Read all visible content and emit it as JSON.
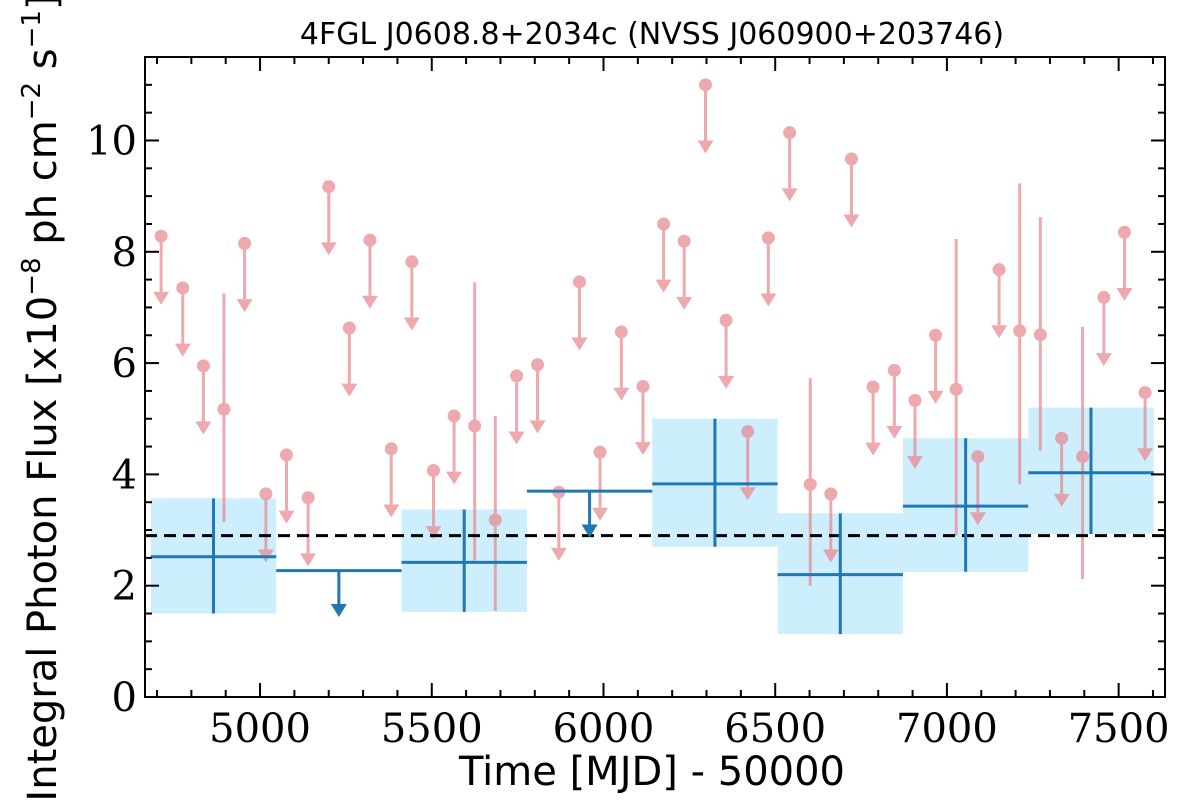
{
  "chart_data": {
    "type": "scatter",
    "title": "4FGL J0608.8+2034c (NVSS J060900+203746)",
    "xlabel": "Time [MJD] - 50000",
    "ylabel": "Integral Photon Flux [x10",
    "ylabel_exp1": "−8",
    "ylabel_mid": " ph cm",
    "ylabel_exp2": "−2",
    "ylabel_end": " s",
    "ylabel_exp3": "−1",
    "ylabel_close": "]",
    "xlim": [
      4665,
      7635
    ],
    "ylim": [
      0,
      11.5
    ],
    "x_ticks": [
      5000,
      5500,
      6000,
      6500,
      7000,
      7500
    ],
    "x_tick_labels": [
      "5000",
      "5500",
      "6000",
      "6500",
      "7000",
      "7500"
    ],
    "y_ticks": [
      0,
      2,
      4,
      6,
      8,
      10
    ],
    "y_tick_labels": [
      "0",
      "2",
      "4",
      "6",
      "8",
      "10"
    ],
    "mean_flux": 2.9,
    "colors": {
      "yearly": "#1f77b4",
      "yearly_band": "#cdeefc",
      "monthly": "#e8858c",
      "mean_line": "#000000"
    },
    "yearly_bins": [
      {
        "x_start": 4682,
        "x_end": 5047,
        "y": 2.52,
        "y_low": 1.5,
        "y_high": 3.57,
        "upper_limit": false
      },
      {
        "x_start": 5047,
        "x_end": 5412,
        "y": 2.27,
        "upper_limit": true
      },
      {
        "x_start": 5412,
        "x_end": 5777,
        "y": 2.42,
        "y_low": 1.53,
        "y_high": 3.37,
        "upper_limit": false
      },
      {
        "x_start": 5777,
        "x_end": 6142,
        "y": 3.7,
        "upper_limit": true
      },
      {
        "x_start": 6142,
        "x_end": 6507,
        "y": 3.83,
        "y_low": 2.7,
        "y_high": 5.0,
        "upper_limit": false
      },
      {
        "x_start": 6507,
        "x_end": 6872,
        "y": 2.2,
        "y_low": 1.13,
        "y_high": 3.3,
        "upper_limit": false
      },
      {
        "x_start": 6872,
        "x_end": 7237,
        "y": 3.43,
        "y_low": 2.25,
        "y_high": 4.65,
        "upper_limit": false
      },
      {
        "x_start": 7237,
        "x_end": 7602,
        "y": 4.03,
        "y_low": 2.93,
        "y_high": 5.2,
        "upper_limit": false
      }
    ],
    "monthly_points": [
      {
        "x": 4712,
        "y": 8.28,
        "upper_limit": true
      },
      {
        "x": 4775,
        "y": 7.35,
        "upper_limit": true
      },
      {
        "x": 4835,
        "y": 5.95,
        "upper_limit": true
      },
      {
        "x": 4895,
        "y": 5.17,
        "upper_limit": false,
        "y_low": 3.15,
        "y_high": 7.25
      },
      {
        "x": 4955,
        "y": 8.15,
        "upper_limit": true
      },
      {
        "x": 5017,
        "y": 3.65,
        "upper_limit": true
      },
      {
        "x": 5077,
        "y": 4.35,
        "upper_limit": true
      },
      {
        "x": 5140,
        "y": 3.58,
        "upper_limit": true
      },
      {
        "x": 5200,
        "y": 9.17,
        "upper_limit": true
      },
      {
        "x": 5260,
        "y": 6.63,
        "upper_limit": true
      },
      {
        "x": 5320,
        "y": 8.21,
        "upper_limit": true
      },
      {
        "x": 5382,
        "y": 4.46,
        "upper_limit": true
      },
      {
        "x": 5442,
        "y": 7.82,
        "upper_limit": true
      },
      {
        "x": 5505,
        "y": 4.07,
        "upper_limit": true
      },
      {
        "x": 5565,
        "y": 5.05,
        "upper_limit": true
      },
      {
        "x": 5625,
        "y": 4.87,
        "upper_limit": false,
        "y_low": 2.45,
        "y_high": 7.45
      },
      {
        "x": 5685,
        "y": 3.18,
        "upper_limit": false,
        "y_low": 1.55,
        "y_high": 5.05
      },
      {
        "x": 5747,
        "y": 5.77,
        "upper_limit": true
      },
      {
        "x": 5808,
        "y": 5.97,
        "upper_limit": true
      },
      {
        "x": 5870,
        "y": 3.68,
        "upper_limit": true
      },
      {
        "x": 5930,
        "y": 7.46,
        "upper_limit": true
      },
      {
        "x": 5990,
        "y": 4.4,
        "upper_limit": true
      },
      {
        "x": 6052,
        "y": 6.56,
        "upper_limit": true
      },
      {
        "x": 6115,
        "y": 5.58,
        "upper_limit": true
      },
      {
        "x": 6175,
        "y": 8.5,
        "upper_limit": true
      },
      {
        "x": 6235,
        "y": 8.19,
        "upper_limit": true
      },
      {
        "x": 6297,
        "y": 11.0,
        "upper_limit": true
      },
      {
        "x": 6357,
        "y": 6.77,
        "upper_limit": true
      },
      {
        "x": 6420,
        "y": 4.77,
        "upper_limit": true
      },
      {
        "x": 6480,
        "y": 8.25,
        "upper_limit": true
      },
      {
        "x": 6542,
        "y": 10.14,
        "upper_limit": true
      },
      {
        "x": 6602,
        "y": 3.82,
        "upper_limit": false,
        "y_low": 2.0,
        "y_high": 5.73
      },
      {
        "x": 6662,
        "y": 3.65,
        "upper_limit": true
      },
      {
        "x": 6722,
        "y": 9.67,
        "upper_limit": true
      },
      {
        "x": 6785,
        "y": 5.57,
        "upper_limit": true
      },
      {
        "x": 6847,
        "y": 5.87,
        "upper_limit": true
      },
      {
        "x": 6907,
        "y": 5.33,
        "upper_limit": true
      },
      {
        "x": 6967,
        "y": 6.5,
        "upper_limit": true
      },
      {
        "x": 7027,
        "y": 5.53,
        "upper_limit": false,
        "y_low": 2.9,
        "y_high": 8.23
      },
      {
        "x": 7090,
        "y": 4.32,
        "upper_limit": true
      },
      {
        "x": 7152,
        "y": 7.68,
        "upper_limit": true
      },
      {
        "x": 7212,
        "y": 6.58,
        "upper_limit": false,
        "y_low": 3.82,
        "y_high": 9.23
      },
      {
        "x": 7272,
        "y": 6.51,
        "upper_limit": false,
        "y_low": 4.43,
        "y_high": 8.62
      },
      {
        "x": 7334,
        "y": 4.65,
        "upper_limit": true
      },
      {
        "x": 7395,
        "y": 4.32,
        "upper_limit": false,
        "y_low": 2.12,
        "y_high": 6.65
      },
      {
        "x": 7457,
        "y": 7.18,
        "upper_limit": true
      },
      {
        "x": 7517,
        "y": 8.35,
        "upper_limit": true
      },
      {
        "x": 7577,
        "y": 5.47,
        "upper_limit": true
      }
    ]
  }
}
